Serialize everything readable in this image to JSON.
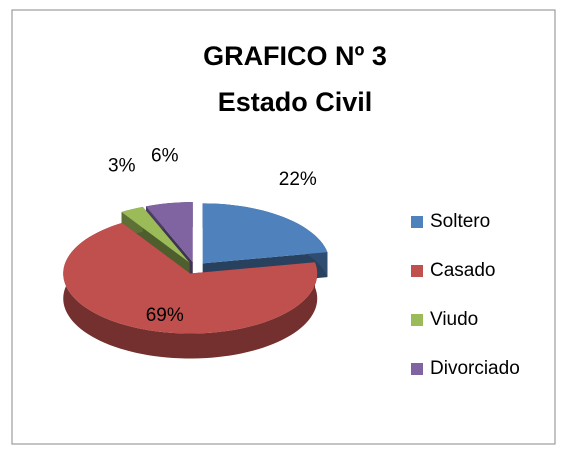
{
  "chart_data": {
    "type": "pie",
    "title": "GRAFICO Nº 3",
    "subtitle": "Estado Civil",
    "categories": [
      "Soltero",
      "Casado",
      "Viudo",
      "Divorciado"
    ],
    "values": [
      22,
      69,
      3,
      6
    ],
    "value_labels": [
      "22%",
      "69%",
      "3%",
      "6%"
    ],
    "colors": [
      "#4f81bd",
      "#c0504d",
      "#9bbb59",
      "#8064a2"
    ],
    "legend": "right"
  }
}
